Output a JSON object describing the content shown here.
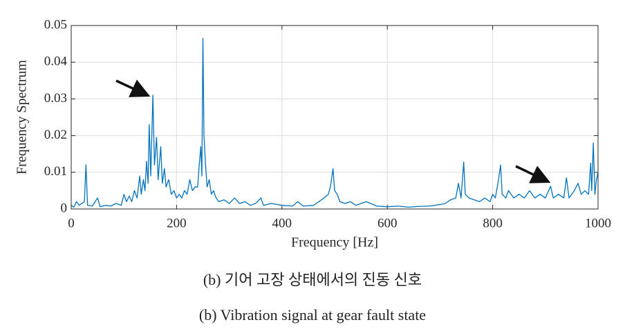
{
  "chart_data": {
    "type": "line",
    "xlabel": "Frequency [Hz]",
    "ylabel": "Frequency Spectrum",
    "captions": [
      "(b) 기어 고장 상태에서의 진동 신호",
      "(b) Vibration signal at gear fault state"
    ],
    "xlim": [
      0,
      1000
    ],
    "xticks": [
      0,
      200,
      400,
      600,
      800,
      1000
    ],
    "ylim": [
      0,
      0.05
    ],
    "yticks": [
      0,
      0.01,
      0.02,
      0.03,
      0.04,
      0.05
    ],
    "grid": true,
    "series": [
      {
        "color": "#0072bd",
        "x": [
          0,
          5,
          10,
          15,
          20,
          25,
          28,
          31,
          40,
          50,
          55,
          65,
          75,
          85,
          95,
          100,
          105,
          110,
          115,
          120,
          125,
          130,
          133,
          137,
          140,
          143,
          146,
          148,
          151,
          155,
          158,
          162,
          165,
          170,
          173,
          177,
          180,
          185,
          190,
          195,
          200,
          205,
          210,
          215,
          220,
          225,
          230,
          235,
          240,
          243,
          246,
          248,
          250,
          252,
          255,
          258,
          262,
          266,
          270,
          275,
          280,
          290,
          300,
          310,
          320,
          330,
          340,
          350,
          360,
          365,
          380,
          400,
          420,
          430,
          440,
          460,
          470,
          480,
          488,
          492,
          497,
          500,
          505,
          510,
          520,
          530,
          540,
          560,
          580,
          600,
          620,
          640,
          660,
          680,
          700,
          710,
          720,
          730,
          735,
          740,
          745,
          748,
          755,
          765,
          775,
          785,
          795,
          800,
          805,
          810,
          815,
          818,
          825,
          830,
          840,
          850,
          860,
          870,
          880,
          890,
          900,
          910,
          915,
          925,
          935,
          940,
          945,
          955,
          962,
          968,
          975,
          982,
          986,
          988,
          991,
          994,
          997,
          1000
        ],
        "values": [
          0.001,
          0.0005,
          0.002,
          0.001,
          0.0015,
          0.002,
          0.012,
          0.001,
          0.0008,
          0.003,
          0.0006,
          0.001,
          0.0008,
          0.0015,
          0.001,
          0.004,
          0.002,
          0.0035,
          0.002,
          0.005,
          0.003,
          0.009,
          0.004,
          0.008,
          0.005,
          0.013,
          0.007,
          0.023,
          0.009,
          0.031,
          0.012,
          0.0195,
          0.008,
          0.017,
          0.007,
          0.011,
          0.006,
          0.008,
          0.004,
          0.005,
          0.003,
          0.004,
          0.003,
          0.005,
          0.004,
          0.008,
          0.005,
          0.006,
          0.006,
          0.012,
          0.017,
          0.009,
          0.0465,
          0.02,
          0.012,
          0.006,
          0.008,
          0.004,
          0.005,
          0.003,
          0.002,
          0.0025,
          0.0015,
          0.003,
          0.0015,
          0.002,
          0.001,
          0.0015,
          0.003,
          0.001,
          0.0015,
          0.001,
          0.0008,
          0.002,
          0.0008,
          0.001,
          0.002,
          0.003,
          0.004,
          0.006,
          0.011,
          0.005,
          0.004,
          0.002,
          0.0015,
          0.002,
          0.001,
          0.002,
          0.0008,
          0.0006,
          0.0008,
          0.0005,
          0.0007,
          0.0008,
          0.0012,
          0.0015,
          0.0025,
          0.003,
          0.007,
          0.003,
          0.0128,
          0.004,
          0.003,
          0.0025,
          0.002,
          0.003,
          0.002,
          0.004,
          0.003,
          0.007,
          0.012,
          0.004,
          0.003,
          0.005,
          0.003,
          0.004,
          0.003,
          0.005,
          0.003,
          0.004,
          0.003,
          0.0062,
          0.003,
          0.004,
          0.003,
          0.0085,
          0.003,
          0.005,
          0.007,
          0.004,
          0.005,
          0.004,
          0.0125,
          0.005,
          0.018,
          0.004,
          0.008,
          0.01
        ]
      }
    ]
  }
}
